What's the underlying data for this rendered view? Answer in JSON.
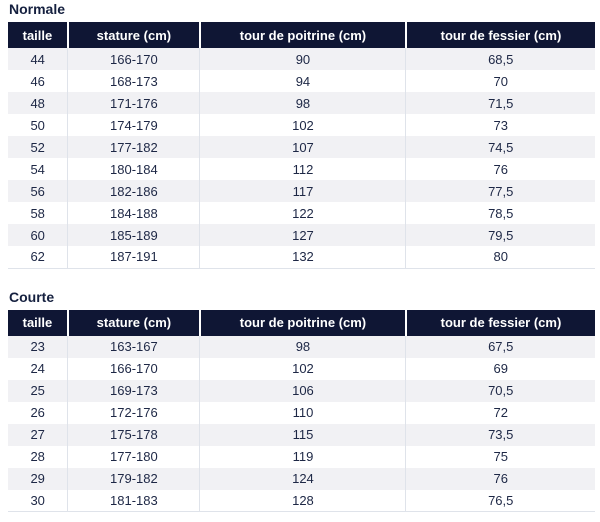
{
  "page": {
    "background": "#ffffff"
  },
  "colors": {
    "header_bg": "#0f1634",
    "header_text": "#ffffff",
    "body_text": "#1d2745",
    "title_text": "#15203f",
    "row_alt_bg": "#f1f1f4",
    "row_bg": "#ffffff",
    "divider": "#dfe3ea"
  },
  "tables": [
    {
      "title": "Normale",
      "columns": [
        "taille",
        "stature (cm)",
        "tour de poitrine (cm)",
        "tour de fessier (cm)"
      ],
      "rows": [
        [
          "44",
          "166-170",
          "90",
          "68,5"
        ],
        [
          "46",
          "168-173",
          "94",
          "70"
        ],
        [
          "48",
          "171-176",
          "98",
          "71,5"
        ],
        [
          "50",
          "174-179",
          "102",
          "73"
        ],
        [
          "52",
          "177-182",
          "107",
          "74,5"
        ],
        [
          "54",
          "180-184",
          "112",
          "76"
        ],
        [
          "56",
          "182-186",
          "117",
          "77,5"
        ],
        [
          "58",
          "184-188",
          "122",
          "78,5"
        ],
        [
          "60",
          "185-189",
          "127",
          "79,5"
        ],
        [
          "62",
          "187-191",
          "132",
          "80"
        ]
      ]
    },
    {
      "title": "Courte",
      "columns": [
        "taille",
        "stature (cm)",
        "tour de poitrine (cm)",
        "tour de fessier (cm)"
      ],
      "rows": [
        [
          "23",
          "163-167",
          "98",
          "67,5"
        ],
        [
          "24",
          "166-170",
          "102",
          "69"
        ],
        [
          "25",
          "169-173",
          "106",
          "70,5"
        ],
        [
          "26",
          "172-176",
          "110",
          "72"
        ],
        [
          "27",
          "175-178",
          "115",
          "73,5"
        ],
        [
          "28",
          "177-180",
          "119",
          "75"
        ],
        [
          "29",
          "179-182",
          "124",
          "76"
        ],
        [
          "30",
          "181-183",
          "128",
          "76,5"
        ]
      ]
    }
  ]
}
